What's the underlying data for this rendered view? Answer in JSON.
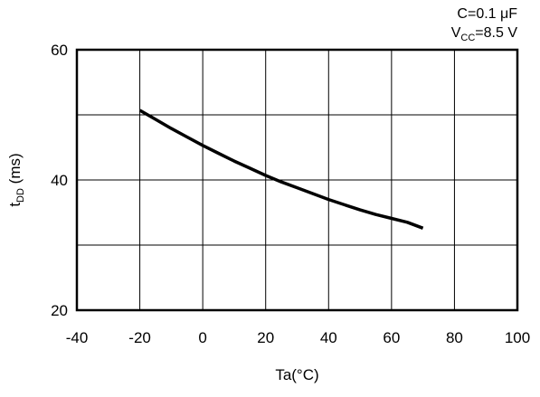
{
  "chart_data": {
    "type": "line",
    "conditions": {
      "cap": {
        "text": "C=0.1 μF"
      },
      "vcc": {
        "main": "V",
        "sub": "CC",
        "rest": "=8.5 V"
      }
    },
    "xlabel": "Ta(°C)",
    "ylabel": {
      "main": "t",
      "sub": "DD",
      "rest": " (ms)"
    },
    "xlim": [
      -40,
      100
    ],
    "ylim": [
      20,
      60
    ],
    "x_ticks": [
      -40,
      -20,
      0,
      20,
      40,
      60,
      80,
      100
    ],
    "y_ticks": [
      20,
      40,
      60
    ],
    "grid": true,
    "series": [
      {
        "x": [
          -20,
          -15,
          -10,
          -5,
          0,
          5,
          10,
          15,
          20,
          25,
          30,
          35,
          40,
          45,
          50,
          55,
          60,
          65,
          70
        ],
        "values": [
          50.7,
          49.3,
          47.9,
          46.6,
          45.3,
          44.1,
          42.9,
          41.8,
          40.7,
          39.7,
          38.8,
          37.9,
          37.0,
          36.2,
          35.4,
          34.7,
          34.1,
          33.5,
          32.6
        ]
      }
    ]
  }
}
